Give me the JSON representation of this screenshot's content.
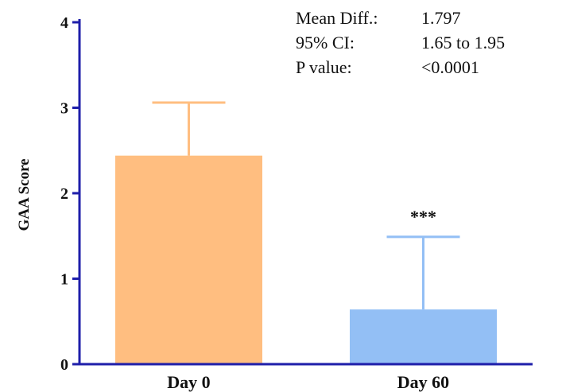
{
  "chart_data": {
    "type": "bar",
    "categories": [
      "Day 0",
      "Day 60"
    ],
    "values": [
      2.44,
      0.64
    ],
    "error_upper": [
      3.06,
      1.49
    ],
    "colors": [
      "#FFBE80",
      "#93BFF5"
    ],
    "axis_color": "#1E1EAA",
    "title": "",
    "xlabel": "",
    "ylabel": "GAA Score",
    "ylim": [
      0,
      4
    ],
    "yticks": [
      "0",
      "1",
      "2",
      "3",
      "4"
    ],
    "grid": false,
    "significance": [
      {
        "category": "Day 60",
        "label": "***"
      }
    ],
    "stats_box": [
      {
        "label": "Mean Diff.:",
        "value": "1.797"
      },
      {
        "label": "95% CI:",
        "value": "1.65 to 1.95"
      },
      {
        "label": "P value:",
        "value": "<0.0001"
      }
    ]
  }
}
